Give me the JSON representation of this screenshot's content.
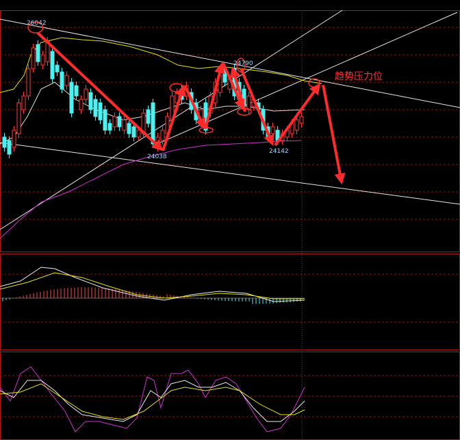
{
  "annotations": {
    "high": "26042",
    "low": "24038",
    "peak": "24790",
    "recent_low": "24142",
    "resistance": "趋势压力位"
  }
}
